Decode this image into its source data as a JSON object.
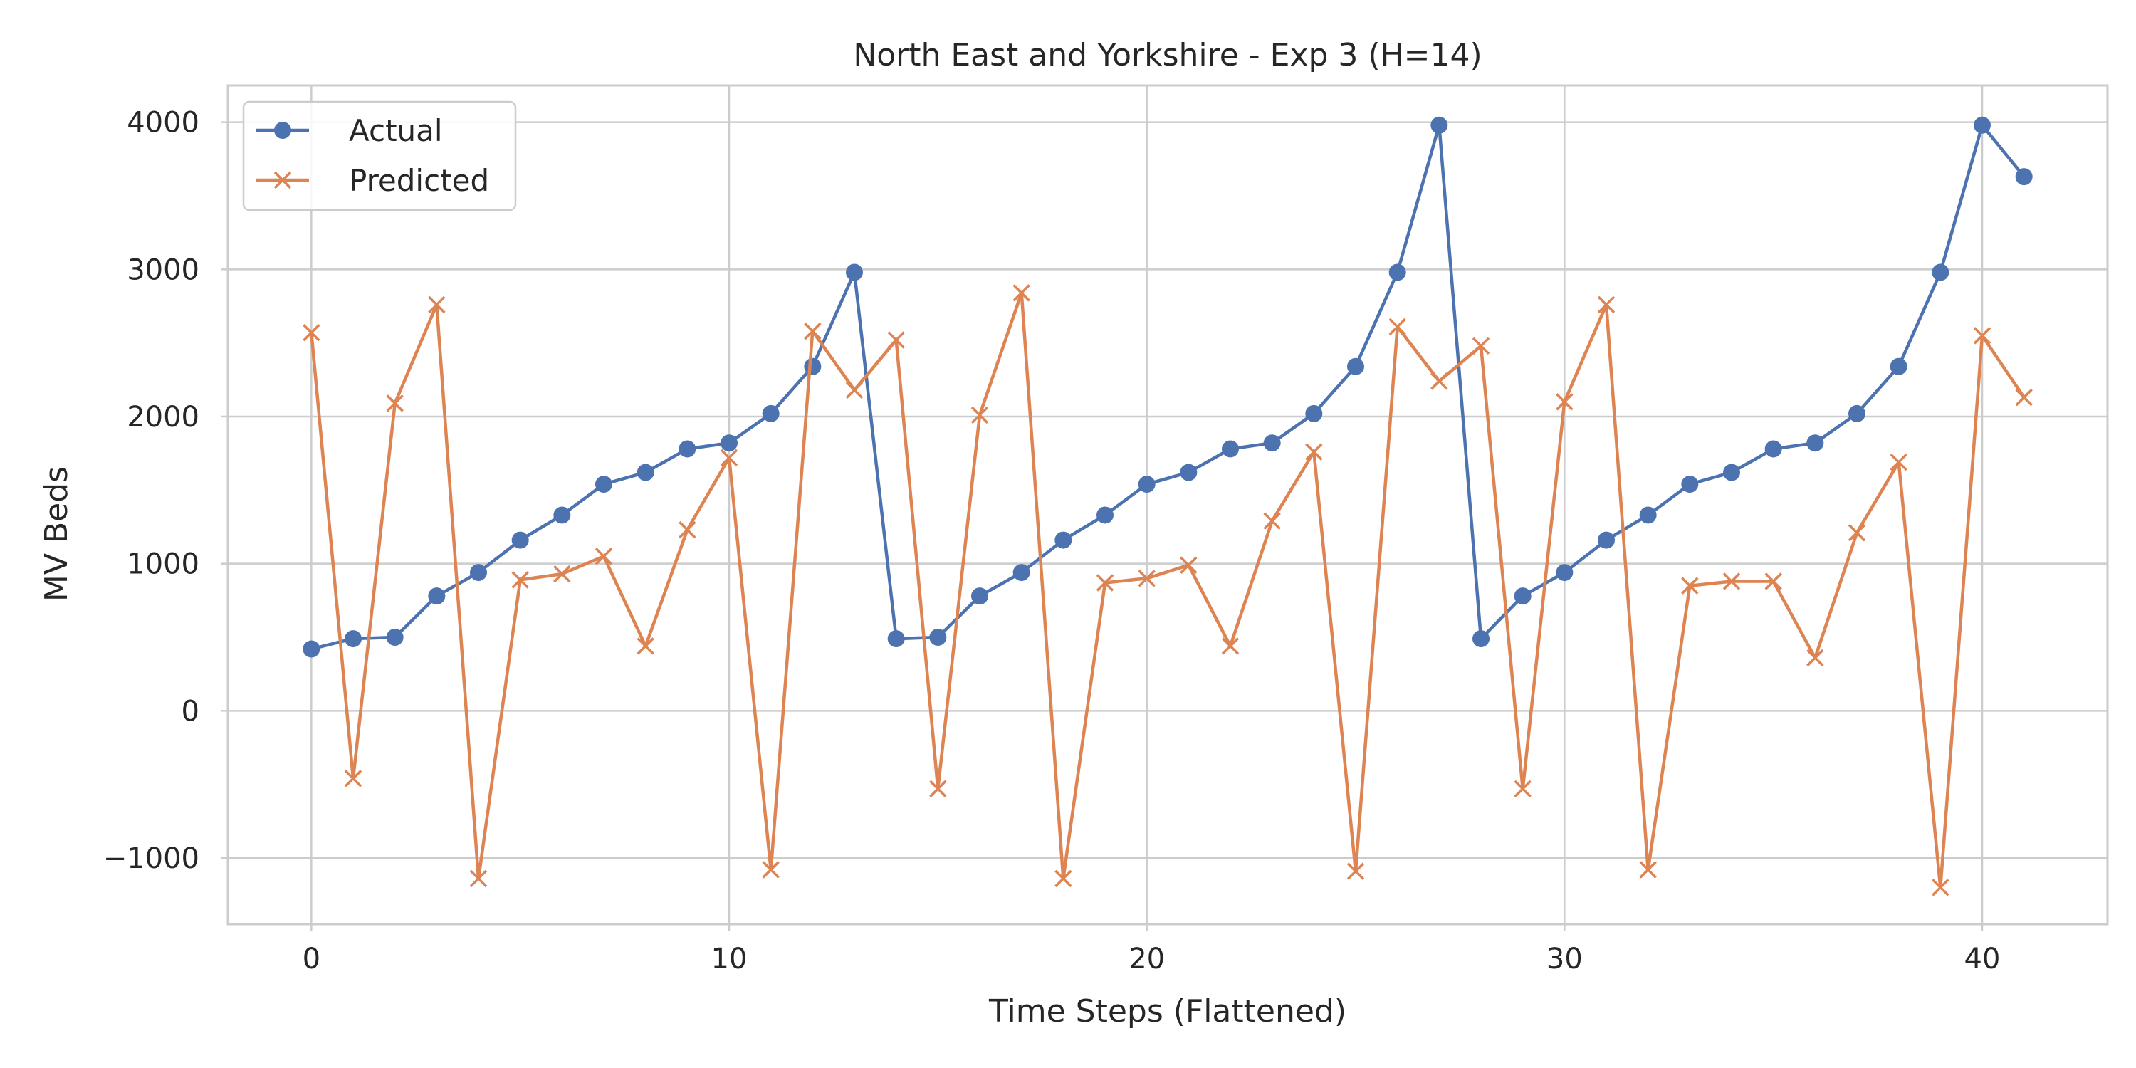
{
  "chart_data": {
    "type": "line",
    "title": "North East and Yorkshire - Exp 3 (H=14)",
    "xlabel": "Time Steps (Flattened)",
    "ylabel": "MV Beds",
    "xlim": [
      -2,
      43
    ],
    "ylim": [
      -1450,
      4250
    ],
    "xticks": [
      0,
      10,
      20,
      30,
      40
    ],
    "yticks": [
      -1000,
      0,
      1000,
      2000,
      3000,
      4000
    ],
    "xtick_labels": [
      "0",
      "10",
      "20",
      "30",
      "40"
    ],
    "ytick_labels": [
      "−1000",
      "0",
      "1000",
      "2000",
      "3000",
      "4000"
    ],
    "grid": true,
    "legend_position": "top-left",
    "x": [
      0,
      1,
      2,
      3,
      4,
      5,
      6,
      7,
      8,
      9,
      10,
      11,
      12,
      13,
      14,
      15,
      16,
      17,
      18,
      19,
      20,
      21,
      22,
      23,
      24,
      25,
      26,
      27,
      28,
      29,
      30,
      31,
      32,
      33,
      34,
      35,
      36,
      37,
      38,
      39,
      40,
      41
    ],
    "series": [
      {
        "name": "Actual",
        "color": "#4c72b0",
        "marker": "circle",
        "values": [
          420,
          490,
          500,
          780,
          940,
          1160,
          1330,
          1540,
          1620,
          1780,
          1820,
          2020,
          2340,
          2980,
          490,
          500,
          780,
          940,
          1160,
          1330,
          1540,
          1620,
          1780,
          1820,
          2020,
          2340,
          2980,
          3980,
          490,
          780,
          940,
          1160,
          1330,
          1540,
          1620,
          1780,
          1820,
          2020,
          2340,
          2980,
          3980,
          3630
        ]
      },
      {
        "name": "Predicted",
        "color": "#dd8452",
        "marker": "x",
        "values": [
          2570,
          -460,
          2090,
          2760,
          -1140,
          890,
          930,
          1050,
          440,
          1230,
          1720,
          -1080,
          2580,
          2180,
          2520,
          -530,
          2010,
          2840,
          -1140,
          870,
          900,
          990,
          440,
          1290,
          1760,
          -1090,
          2610,
          2240,
          2480,
          -530,
          2100,
          2760,
          -1080,
          850,
          880,
          880,
          360,
          1210,
          1690,
          -1200,
          2550,
          2130
        ]
      }
    ]
  }
}
